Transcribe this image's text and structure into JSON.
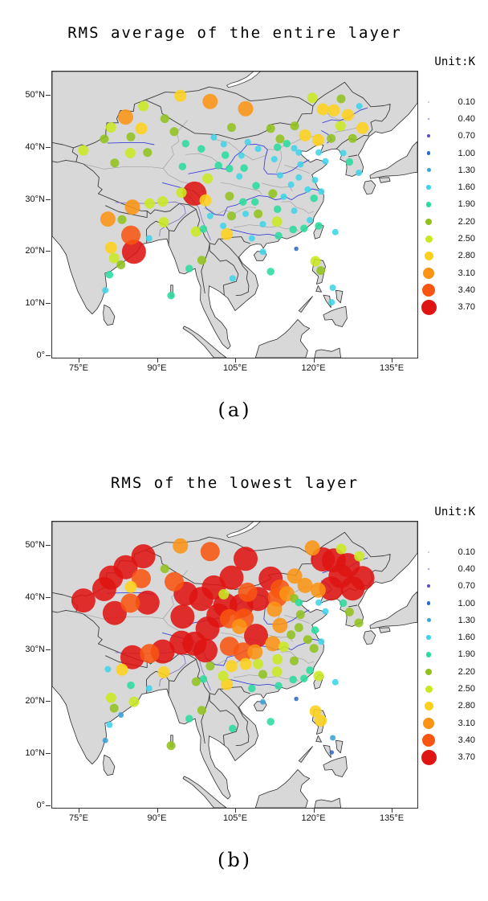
{
  "figure": {
    "unit_label": "Unit:K",
    "panels": [
      {
        "id": "a",
        "title": "RMS average of the entire layer",
        "caption": "(a)"
      },
      {
        "id": "b",
        "title": "RMS of the lowest layer",
        "caption": "(b)"
      }
    ]
  },
  "axes": {
    "lon_min": 69.92,
    "lon_max": 139.92,
    "lat_min": -0.34,
    "lat_max": 54.66,
    "x_ticks": [
      {
        "label": "75°E",
        "lon": 75
      },
      {
        "label": "90°E",
        "lon": 90
      },
      {
        "label": "105°E",
        "lon": 105
      },
      {
        "label": "120°E",
        "lon": 120
      },
      {
        "label": "135°E",
        "lon": 135
      }
    ],
    "y_ticks": [
      {
        "label": "0°",
        "lat": 0
      },
      {
        "label": "10°N",
        "lat": 10
      },
      {
        "label": "20°N",
        "lat": 20
      },
      {
        "label": "30°N",
        "lat": 30
      },
      {
        "label": "40°N",
        "lat": 40
      },
      {
        "label": "50°N",
        "lat": 50
      }
    ]
  },
  "legend": {
    "title": "Unit:K",
    "bins": [
      {
        "label": "0.10",
        "value": 0.1,
        "color": "#c8c2e4"
      },
      {
        "label": "0.40",
        "value": 0.4,
        "color": "#9488cf"
      },
      {
        "label": "0.70",
        "value": 0.7,
        "color": "#5a52c2"
      },
      {
        "label": "1.00",
        "value": 1.0,
        "color": "#2c6bc9"
      },
      {
        "label": "1.30",
        "value": 1.3,
        "color": "#3aa1da"
      },
      {
        "label": "1.60",
        "value": 1.6,
        "color": "#40d4e8"
      },
      {
        "label": "1.90",
        "value": 1.9,
        "color": "#2adc9d"
      },
      {
        "label": "2.20",
        "value": 2.2,
        "color": "#91c11d"
      },
      {
        "label": "2.50",
        "value": 2.5,
        "color": "#cae822"
      },
      {
        "label": "2.80",
        "value": 2.8,
        "color": "#fdd11b"
      },
      {
        "label": "3.10",
        "value": 3.1,
        "color": "#fb9415"
      },
      {
        "label": "3.40",
        "value": 3.4,
        "color": "#f85511"
      },
      {
        "label": "3.70",
        "value": 3.7,
        "color": "#de1512"
      }
    ]
  },
  "chart_data": {
    "type": "scatter",
    "map_region": "East and South Asia, 70-140E / 0-55N",
    "series": [
      {
        "key": "a",
        "name": "RMS average of the entire layer"
      },
      {
        "key": "b",
        "name": "RMS of the lowest layer"
      }
    ],
    "value_bins": [
      0.1,
      0.4,
      0.7,
      1.0,
      1.3,
      1.6,
      1.9,
      2.2,
      2.5,
      2.8,
      3.1,
      3.4,
      3.7
    ],
    "station_columns": [
      "lon",
      "lat",
      "rms_a",
      "rms_b"
    ],
    "stations": [
      [
        87.4,
        48.0,
        2.5,
        3.7
      ],
      [
        84.0,
        45.9,
        3.1,
        3.7
      ],
      [
        81.2,
        43.9,
        2.5,
        3.7
      ],
      [
        87.0,
        43.7,
        2.8,
        3.4
      ],
      [
        93.3,
        43.1,
        2.2,
        3.4
      ],
      [
        79.9,
        41.7,
        2.2,
        3.7
      ],
      [
        85.0,
        42.1,
        2.2,
        2.8
      ],
      [
        75.9,
        39.5,
        2.5,
        3.7
      ],
      [
        84.9,
        39.0,
        2.5,
        3.4
      ],
      [
        88.2,
        39.1,
        2.2,
        3.7
      ],
      [
        81.9,
        37.1,
        2.2,
        3.7
      ],
      [
        91.5,
        45.6,
        2.2,
        2.2
      ],
      [
        94.5,
        50.0,
        2.8,
        3.1
      ],
      [
        100.2,
        48.9,
        3.1,
        3.4
      ],
      [
        107.0,
        47.5,
        3.1,
        3.7
      ],
      [
        95.5,
        40.8,
        1.9,
        3.7
      ],
      [
        100.9,
        42.0,
        1.6,
        3.7
      ],
      [
        102.8,
        40.7,
        1.6,
        2.5
      ],
      [
        104.3,
        43.9,
        2.2,
        3.7
      ],
      [
        111.8,
        43.7,
        2.2,
        3.7
      ],
      [
        116.4,
        44.2,
        2.2,
        3.1
      ],
      [
        113.6,
        41.7,
        2.2,
        3.4
      ],
      [
        119.8,
        49.6,
        2.5,
        3.1
      ],
      [
        125.3,
        49.4,
        2.2,
        2.5
      ],
      [
        128.8,
        48.0,
        1.6,
        2.5
      ],
      [
        121.8,
        47.4,
        2.8,
        3.7
      ],
      [
        123.9,
        47.2,
        2.8,
        3.7
      ],
      [
        126.6,
        46.3,
        2.8,
        3.7
      ],
      [
        129.4,
        43.8,
        2.8,
        3.7
      ],
      [
        125.2,
        44.2,
        2.5,
        3.7
      ],
      [
        127.5,
        41.8,
        2.2,
        3.7
      ],
      [
        123.4,
        41.8,
        2.2,
        3.7
      ],
      [
        120.9,
        41.5,
        2.8,
        3.1
      ],
      [
        118.4,
        42.4,
        2.8,
        3.1
      ],
      [
        113.1,
        40.1,
        1.9,
        3.4
      ],
      [
        114.9,
        40.8,
        1.9,
        3.1
      ],
      [
        116.3,
        39.9,
        1.6,
        2.2
      ],
      [
        117.2,
        39.1,
        1.6,
        1.9
      ],
      [
        121.0,
        39.1,
        1.6,
        1.6
      ],
      [
        109.4,
        39.8,
        1.6,
        3.7
      ],
      [
        107.4,
        41.1,
        1.6,
        3.4
      ],
      [
        112.5,
        37.8,
        1.6,
        3.1
      ],
      [
        106.2,
        38.5,
        1.6,
        3.7
      ],
      [
        103.1,
        38.6,
        1.9,
        3.7
      ],
      [
        98.5,
        39.8,
        1.9,
        3.7
      ],
      [
        101.8,
        36.6,
        1.9,
        3.7
      ],
      [
        103.9,
        36.0,
        1.9,
        3.4
      ],
      [
        94.9,
        36.4,
        1.9,
        3.7
      ],
      [
        99.7,
        34.1,
        2.5,
        3.7
      ],
      [
        106.7,
        36.1,
        1.9,
        3.4
      ],
      [
        105.8,
        34.5,
        1.6,
        3.1
      ],
      [
        97.2,
        31.2,
        3.7,
        3.7
      ],
      [
        99.3,
        29.9,
        2.8,
        3.7
      ],
      [
        91.1,
        29.7,
        2.5,
        3.7
      ],
      [
        88.6,
        29.3,
        2.5,
        3.4
      ],
      [
        85.3,
        28.6,
        3.1,
        3.7
      ],
      [
        94.7,
        31.4,
        2.5,
        3.7
      ],
      [
        103.9,
        30.7,
        2.2,
        3.4
      ],
      [
        106.5,
        29.6,
        1.9,
        3.4
      ],
      [
        108.8,
        29.6,
        1.9,
        3.1
      ],
      [
        104.3,
        26.9,
        2.2,
        2.8
      ],
      [
        107.0,
        27.3,
        1.6,
        2.8
      ],
      [
        102.7,
        25.0,
        1.6,
        2.5
      ],
      [
        103.4,
        23.4,
        2.8,
        2.8
      ],
      [
        98.9,
        24.4,
        1.9,
        1.9
      ],
      [
        100.2,
        26.9,
        1.6,
        2.2
      ],
      [
        109.0,
        32.7,
        1.9,
        3.7
      ],
      [
        112.2,
        31.2,
        2.2,
        3.1
      ],
      [
        114.3,
        30.6,
        1.6,
        2.5
      ],
      [
        115.7,
        32.9,
        1.6,
        2.2
      ],
      [
        113.6,
        34.7,
        1.6,
        3.1
      ],
      [
        117.2,
        34.3,
        1.6,
        2.2
      ],
      [
        120.3,
        33.8,
        1.6,
        1.9
      ],
      [
        117.5,
        36.8,
        1.6,
        2.2
      ],
      [
        122.3,
        37.4,
        1.6,
        1.6
      ],
      [
        121.5,
        31.6,
        1.6,
        1.6
      ],
      [
        120.1,
        30.3,
        1.9,
        2.2
      ],
      [
        118.9,
        32.0,
        1.6,
        2.2
      ],
      [
        109.4,
        27.3,
        2.2,
        2.5
      ],
      [
        110.3,
        25.3,
        1.6,
        2.2
      ],
      [
        113.0,
        25.8,
        2.5,
        2.5
      ],
      [
        113.1,
        28.2,
        1.9,
        2.5
      ],
      [
        116.3,
        27.9,
        1.6,
        2.2
      ],
      [
        116.1,
        24.3,
        1.9,
        1.9
      ],
      [
        113.3,
        23.1,
        1.9,
        1.9
      ],
      [
        108.2,
        22.6,
        1.6,
        1.9
      ],
      [
        110.3,
        20.0,
        1.6,
        1.3
      ],
      [
        116.7,
        20.6,
        1.0,
        1.0
      ],
      [
        111.8,
        16.2,
        1.9,
        1.9
      ],
      [
        121.0,
        25.0,
        1.9,
        2.5
      ],
      [
        124.2,
        23.8,
        1.6,
        1.6
      ],
      [
        118.2,
        24.5,
        1.9,
        1.9
      ],
      [
        119.3,
        26.1,
        1.6,
        1.9
      ],
      [
        126.9,
        37.3,
        1.9,
        2.2
      ],
      [
        128.7,
        35.2,
        1.6,
        2.2
      ],
      [
        125.7,
        39.0,
        1.6,
        1.9
      ],
      [
        80.6,
        26.3,
        3.1,
        1.6
      ],
      [
        83.3,
        26.2,
        2.2,
        2.8
      ],
      [
        85.0,
        23.2,
        3.4,
        1.9
      ],
      [
        85.6,
        20.0,
        3.7,
        2.5
      ],
      [
        81.2,
        20.8,
        2.8,
        2.5
      ],
      [
        81.8,
        18.8,
        2.5,
        2.2
      ],
      [
        83.1,
        17.5,
        2.2,
        1.3
      ],
      [
        80.9,
        15.6,
        1.9,
        1.6
      ],
      [
        80.1,
        12.6,
        1.6,
        1.3
      ],
      [
        91.3,
        25.7,
        2.5,
        2.8
      ],
      [
        88.5,
        22.6,
        1.6,
        1.6
      ],
      [
        97.5,
        23.9,
        2.5,
        2.2
      ],
      [
        98.6,
        18.4,
        2.2,
        2.2
      ],
      [
        96.2,
        16.8,
        1.9,
        1.9
      ],
      [
        104.5,
        14.9,
        1.6,
        1.9
      ],
      [
        92.7,
        11.6,
        1.9,
        2.2
      ],
      [
        120.4,
        18.2,
        2.5,
        2.8
      ],
      [
        121.4,
        16.4,
        2.2,
        2.8
      ],
      [
        123.7,
        13.1,
        1.6,
        1.3
      ],
      [
        123.5,
        10.3,
        1.6,
        1.0
      ]
    ]
  }
}
